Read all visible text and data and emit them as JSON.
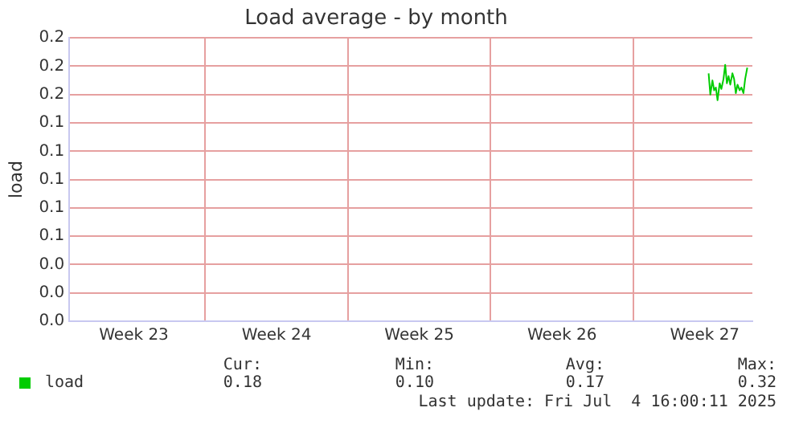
{
  "chart_data": {
    "type": "line",
    "title": "Load average - by month",
    "ylabel": "load",
    "x": [
      "2025-07-03T16:30",
      "2025-07-03T18:30",
      "2025-07-03T21:00",
      "2025-07-03T23:00",
      "2025-07-04T01:00",
      "2025-07-04T03:00",
      "2025-07-04T05:30",
      "2025-07-04T07:30",
      "2025-07-04T10:00",
      "2025-07-04T12:00",
      "2025-07-04T14:00",
      "2025-07-04T16:00",
      "2025-07-04T18:00",
      "2025-07-04T20:30",
      "2025-07-04T22:30",
      "2025-07-05T00:30",
      "2025-07-05T02:30",
      "2025-07-05T05:00",
      "2025-07-05T07:00",
      "2025-07-05T09:30",
      "2025-07-05T11:30",
      "2025-07-05T14:00"
    ],
    "series": [
      {
        "name": "load",
        "color": "#00cc00",
        "values": [
          0.175,
          0.16,
          0.17,
          0.163,
          0.165,
          0.156,
          0.168,
          0.164,
          0.171,
          0.181,
          0.168,
          0.173,
          0.167,
          0.175,
          0.171,
          0.161,
          0.167,
          0.163,
          0.165,
          0.161,
          0.171,
          0.179
        ]
      }
    ],
    "xlim": [
      "2025-06-02T08:00",
      "2025-07-05T20:00"
    ],
    "xticks": [
      {
        "value": "2025-06-05T12:00",
        "label": "Week 23"
      },
      {
        "value": "2025-06-09",
        "label": null
      },
      {
        "value": "2025-06-12T12:00",
        "label": "Week 24"
      },
      {
        "value": "2025-06-16",
        "label": null
      },
      {
        "value": "2025-06-19T12:00",
        "label": "Week 25"
      },
      {
        "value": "2025-06-23",
        "label": null
      },
      {
        "value": "2025-06-26T12:00",
        "label": "Week 26"
      },
      {
        "value": "2025-06-30",
        "label": null
      },
      {
        "value": "2025-07-03T12:00",
        "label": "Week 27"
      }
    ],
    "ylim": [
      0,
      0.2
    ],
    "yticks": [
      {
        "value": 0,
        "label": "0.0"
      },
      {
        "value": 0.02,
        "label": "0.0"
      },
      {
        "value": 0.04,
        "label": "0.0"
      },
      {
        "value": 0.06,
        "label": "0.1"
      },
      {
        "value": 0.08,
        "label": "0.1"
      },
      {
        "value": 0.1,
        "label": "0.1"
      },
      {
        "value": 0.12,
        "label": "0.1"
      },
      {
        "value": 0.14,
        "label": "0.1"
      },
      {
        "value": 0.16,
        "label": "0.2"
      },
      {
        "value": 0.18,
        "label": "0.2"
      },
      {
        "value": 0.2,
        "label": "0.2"
      }
    ],
    "grid": true,
    "legend": "bottom",
    "marker": "none",
    "line_style": "solid",
    "annotations": [
      "Cur:",
      "Min:",
      "Avg:",
      "Max:",
      "0.18",
      "0.10",
      "0.17",
      "0.32",
      "Last update: Fri Jul  4 16:00:11 2025"
    ]
  }
}
